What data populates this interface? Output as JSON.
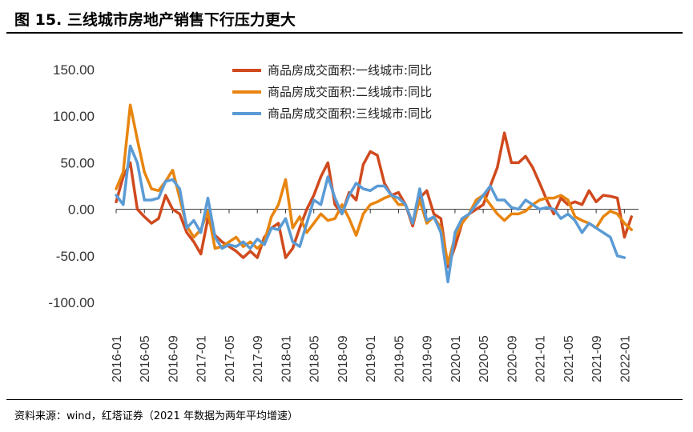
{
  "figure": {
    "title": "图 15. 三线城市房地产销售下行压力更大",
    "source": "资料来源：wind，红塔证券（2021 年数据为两年平均增速）"
  },
  "chart_data": {
    "type": "line",
    "ylim": [
      -100,
      150
    ],
    "yticks": [
      "150.00",
      "100.00",
      "50.00",
      "0.00",
      "-50.00",
      "-100.00"
    ],
    "ytick_values": [
      150,
      100,
      50,
      0,
      -50,
      -100
    ],
    "xticks": [
      "2016-01",
      "2016-05",
      "2016-09",
      "2017-01",
      "2017-05",
      "2017-09",
      "2018-01",
      "2018-05",
      "2018-09",
      "2019-01",
      "2019-05",
      "2019-09",
      "2020-01",
      "2020-05",
      "2020-09",
      "2021-01",
      "2021-05",
      "2021-09",
      "2022-01"
    ],
    "x_start": "2016-01",
    "x_end": "2022-03",
    "legend_position": "top-center",
    "grid": false,
    "series": [
      {
        "name": "商品房成交面积:一线城市:同比",
        "color": "#d04a1e",
        "values": [
          8,
          35,
          50,
          0,
          -8,
          -15,
          -10,
          15,
          0,
          -5,
          -25,
          -35,
          -48,
          -10,
          -28,
          -35,
          -40,
          -45,
          -52,
          -45,
          -52,
          -30,
          -20,
          -15,
          -52,
          -42,
          -20,
          0,
          15,
          35,
          50,
          5,
          -5,
          18,
          10,
          48,
          62,
          58,
          28,
          15,
          18,
          5,
          -18,
          12,
          20,
          -5,
          -10,
          -62,
          -40,
          -15,
          -5,
          0,
          5,
          25,
          45,
          82,
          50,
          50,
          57,
          45,
          28,
          10,
          -5,
          12,
          5,
          8,
          5,
          20,
          8,
          15,
          14,
          12,
          -30,
          -8
        ]
      },
      {
        "name": "商品房成交面积:二线城市:同比",
        "color": "#e8850f",
        "values": [
          22,
          40,
          112,
          75,
          40,
          22,
          20,
          30,
          42,
          12,
          -18,
          -30,
          -22,
          -2,
          -42,
          -40,
          -35,
          -30,
          -40,
          -35,
          -42,
          -35,
          -8,
          5,
          32,
          -20,
          -8,
          -25,
          -15,
          -5,
          -12,
          -10,
          5,
          -10,
          -28,
          -5,
          5,
          8,
          12,
          15,
          5,
          5,
          -15,
          10,
          -15,
          -8,
          -20,
          -58,
          -30,
          -15,
          -5,
          10,
          15,
          5,
          -5,
          -12,
          -5,
          -5,
          -2,
          5,
          10,
          12,
          12,
          15,
          10,
          -8,
          -12,
          -15,
          -20,
          -8,
          -2,
          -5,
          -15,
          -22
        ]
      },
      {
        "name": "商品房成交面积:三线城市:同比",
        "color": "#5b9bd5",
        "values": [
          15,
          5,
          68,
          50,
          10,
          10,
          12,
          30,
          32,
          22,
          -20,
          -12,
          -25,
          12,
          -30,
          -42,
          -38,
          -40,
          -35,
          -42,
          -32,
          -38,
          -20,
          -22,
          -10,
          -35,
          -40,
          -15,
          10,
          5,
          35,
          12,
          -5,
          15,
          28,
          22,
          20,
          25,
          25,
          15,
          12,
          5,
          -15,
          22,
          -12,
          -8,
          -25,
          -78,
          -25,
          -10,
          -5,
          5,
          15,
          25,
          10,
          10,
          2,
          0,
          10,
          5,
          0,
          2,
          0,
          -10,
          -5,
          -12,
          -25,
          -15,
          -20,
          -25,
          -30,
          -50,
          -52
        ]
      }
    ]
  }
}
